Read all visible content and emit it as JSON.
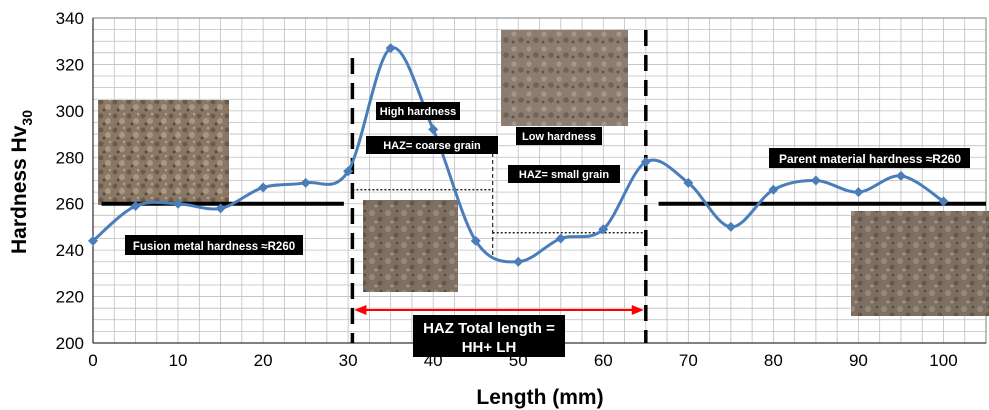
{
  "chart_data": {
    "type": "line",
    "xlabel": "Length (mm)",
    "ylabel": "Hardness Hv",
    "ylabel_sub": "30",
    "xlim": [
      0,
      105
    ],
    "ylim": [
      200,
      340
    ],
    "x_ticks": [
      "0",
      "10",
      "20",
      "30",
      "40",
      "50",
      "60",
      "70",
      "80",
      "90",
      "100"
    ],
    "y_ticks": [
      "200",
      "220",
      "240",
      "260",
      "280",
      "300",
      "320",
      "340"
    ],
    "grid": true,
    "series": [
      {
        "color": "#4a7ebb",
        "marker": "diamond",
        "x": [
          0,
          5,
          10,
          15,
          20,
          25,
          30,
          35,
          40,
          45,
          50,
          55,
          60,
          65,
          70,
          75,
          80,
          85,
          90,
          95,
          100
        ],
        "y": [
          244,
          259,
          260,
          258,
          267,
          269,
          274,
          327,
          292,
          244,
          235,
          245,
          249,
          278,
          269,
          250,
          266,
          270,
          265,
          272,
          261
        ]
      }
    ],
    "annotations": {
      "fusion_metal": "Fusion metal hardness ≈R260",
      "parent_material": "Parent material hardness ≈R260",
      "high_hardness": "High hardness",
      "haz_coarse": "HAZ= coarse grain",
      "low_hardness": "Low hardness",
      "haz_small": "HAZ= small grain",
      "haz_total_line1": "HAZ Total length =",
      "haz_total_line2": "HH+ LH"
    },
    "reference_lines": {
      "fusion_level": 260,
      "parent_level": 260,
      "haz_start_x": 30.5,
      "haz_end_x": 65,
      "coarse_small_boundary_x": 47
    },
    "colors": {
      "line": "#4a7ebb",
      "arrow": "#ff0000",
      "grid": "#bfbfbf",
      "label_bg": "#000000"
    }
  }
}
